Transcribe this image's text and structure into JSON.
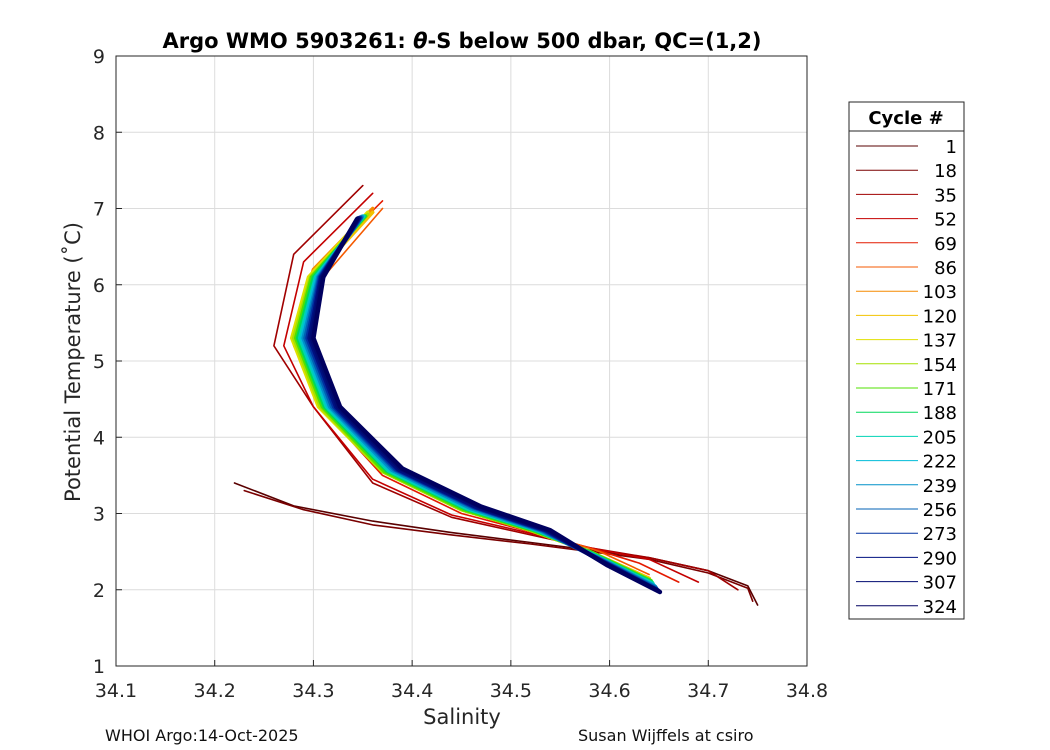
{
  "chart_data": {
    "type": "line",
    "title": "Argo WMO 5903261: θ-S below 500 dbar,  QC=(1,2)",
    "title_parts": {
      "prefix": "Argo WMO 5903261: ",
      "theta": "θ",
      "suffix": "-S below 500 dbar,  QC=(1,2)"
    },
    "xlabel": "Salinity",
    "ylabel": "Potential Temperature (˚C)",
    "xlim": [
      34.1,
      34.8
    ],
    "ylim": [
      1,
      9
    ],
    "xticks": [
      "34.1",
      "34.2",
      "34.3",
      "34.4",
      "34.5",
      "34.6",
      "34.7",
      "34.8"
    ],
    "yticks": [
      "1",
      "2",
      "3",
      "4",
      "5",
      "6",
      "7",
      "8",
      "9"
    ],
    "grid": true,
    "legend_title": "Cycle #",
    "legend_position": "right",
    "series": [
      {
        "name": "1",
        "color": "#5a0000",
        "x": [
          34.22,
          34.28,
          34.36,
          34.44,
          34.52,
          34.58,
          34.64,
          34.7,
          34.74,
          34.75
        ],
        "y": [
          3.4,
          3.1,
          2.9,
          2.75,
          2.62,
          2.52,
          2.42,
          2.25,
          2.05,
          1.8
        ]
      },
      {
        "name": "18",
        "color": "#7a0000",
        "x": [
          34.23,
          34.29,
          34.36,
          34.44,
          34.52,
          34.58,
          34.64,
          34.7,
          34.74,
          34.745
        ],
        "y": [
          3.3,
          3.05,
          2.85,
          2.72,
          2.6,
          2.5,
          2.4,
          2.22,
          2.02,
          1.85
        ]
      },
      {
        "name": "35",
        "color": "#a00000",
        "x": [
          34.35,
          34.28,
          34.26,
          34.3,
          34.36,
          34.44,
          34.52,
          34.58,
          34.64,
          34.7,
          34.73
        ],
        "y": [
          7.3,
          6.4,
          5.2,
          4.4,
          3.4,
          2.95,
          2.72,
          2.55,
          2.42,
          2.25,
          2.0
        ]
      },
      {
        "name": "52",
        "color": "#c40000",
        "x": [
          34.36,
          34.29,
          34.27,
          34.3,
          34.36,
          34.44,
          34.52,
          34.58,
          34.64,
          34.69
        ],
        "y": [
          7.2,
          6.3,
          5.2,
          4.4,
          3.45,
          2.98,
          2.74,
          2.55,
          2.4,
          2.1
        ]
      },
      {
        "name": "69",
        "color": "#e41a00",
        "x": [
          34.37,
          34.3,
          34.28,
          34.31,
          34.37,
          34.45,
          34.52,
          34.58,
          34.63,
          34.67
        ],
        "y": [
          7.1,
          6.2,
          5.2,
          4.35,
          3.5,
          3.0,
          2.76,
          2.55,
          2.35,
          2.1
        ]
      },
      {
        "name": "86",
        "color": "#f55a00",
        "x": [
          34.37,
          34.31,
          34.29,
          34.32,
          34.38,
          34.46,
          34.53,
          34.59,
          34.64
        ],
        "y": [
          7.0,
          6.1,
          5.2,
          4.3,
          3.5,
          3.02,
          2.75,
          2.5,
          2.2
        ]
      },
      {
        "name": "103",
        "color": "#f58a00",
        "x": [
          34.36,
          34.3,
          34.28,
          34.31,
          34.37,
          34.45,
          34.52,
          34.58,
          34.64
        ],
        "y": [
          7.0,
          6.2,
          5.3,
          4.4,
          3.55,
          3.05,
          2.78,
          2.5,
          2.15
        ]
      },
      {
        "name": "120",
        "color": "#f2c200",
        "x": [
          34.36,
          34.3,
          34.28,
          34.31,
          34.37,
          34.45,
          34.52,
          34.58,
          34.64
        ],
        "y": [
          6.95,
          6.1,
          5.3,
          4.4,
          3.55,
          3.05,
          2.78,
          2.5,
          2.15
        ]
      },
      {
        "name": "137",
        "color": "#e0e000",
        "x": [
          34.355,
          34.295,
          34.278,
          34.305,
          34.37,
          34.45,
          34.52,
          34.58,
          34.64
        ],
        "y": [
          6.95,
          6.1,
          5.3,
          4.4,
          3.55,
          3.05,
          2.78,
          2.5,
          2.14
        ]
      },
      {
        "name": "154",
        "color": "#a6e000",
        "x": [
          34.355,
          34.297,
          34.28,
          34.307,
          34.37,
          34.45,
          34.52,
          34.58,
          34.64
        ],
        "y": [
          6.92,
          6.1,
          5.3,
          4.4,
          3.55,
          3.05,
          2.78,
          2.5,
          2.13
        ]
      },
      {
        "name": "171",
        "color": "#50e000",
        "x": [
          34.353,
          34.298,
          34.282,
          34.309,
          34.372,
          34.452,
          34.522,
          34.58,
          34.642
        ],
        "y": [
          6.9,
          6.1,
          5.3,
          4.4,
          3.55,
          3.05,
          2.78,
          2.5,
          2.12
        ]
      },
      {
        "name": "188",
        "color": "#00d85a",
        "x": [
          34.352,
          34.3,
          34.284,
          34.311,
          34.374,
          34.454,
          34.524,
          34.582,
          34.643
        ],
        "y": [
          6.9,
          6.1,
          5.3,
          4.4,
          3.56,
          3.06,
          2.78,
          2.48,
          2.1
        ]
      },
      {
        "name": "205",
        "color": "#00d2b4",
        "x": [
          34.351,
          34.302,
          34.286,
          34.313,
          34.376,
          34.456,
          34.526,
          34.584,
          34.644
        ],
        "y": [
          6.9,
          6.1,
          5.3,
          4.4,
          3.56,
          3.06,
          2.78,
          2.46,
          2.08
        ]
      },
      {
        "name": "222",
        "color": "#00bcd8",
        "x": [
          34.35,
          34.303,
          34.288,
          34.315,
          34.378,
          34.458,
          34.528,
          34.586,
          34.645
        ],
        "y": [
          6.9,
          6.1,
          5.3,
          4.4,
          3.57,
          3.07,
          2.78,
          2.44,
          2.06
        ]
      },
      {
        "name": "239",
        "color": "#0090c8",
        "x": [
          34.349,
          34.305,
          34.29,
          34.317,
          34.38,
          34.46,
          34.53,
          34.588,
          34.646
        ],
        "y": [
          6.89,
          6.1,
          5.3,
          4.4,
          3.57,
          3.07,
          2.78,
          2.42,
          2.04
        ]
      },
      {
        "name": "256",
        "color": "#0060b4",
        "x": [
          34.348,
          34.306,
          34.292,
          34.319,
          34.382,
          34.462,
          34.532,
          34.59,
          34.647
        ],
        "y": [
          6.88,
          6.1,
          5.3,
          4.4,
          3.58,
          3.08,
          2.78,
          2.4,
          2.02
        ]
      },
      {
        "name": "273",
        "color": "#0030a0",
        "x": [
          34.347,
          34.307,
          34.294,
          34.321,
          34.384,
          34.464,
          34.534,
          34.592,
          34.648
        ],
        "y": [
          6.88,
          6.1,
          5.3,
          4.4,
          3.58,
          3.08,
          2.78,
          2.38,
          2.0
        ]
      },
      {
        "name": "290",
        "color": "#001080",
        "x": [
          34.346,
          34.308,
          34.296,
          34.323,
          34.386,
          34.466,
          34.536,
          34.594,
          34.649
        ],
        "y": [
          6.87,
          6.1,
          5.3,
          4.4,
          3.58,
          3.08,
          2.78,
          2.36,
          1.99
        ]
      },
      {
        "name": "307",
        "color": "#000a70",
        "x": [
          34.345,
          34.309,
          34.298,
          34.325,
          34.388,
          34.468,
          34.538,
          34.596,
          34.65
        ],
        "y": [
          6.87,
          6.1,
          5.3,
          4.4,
          3.59,
          3.09,
          2.78,
          2.34,
          1.98
        ]
      },
      {
        "name": "324",
        "color": "#000060",
        "x": [
          34.344,
          34.31,
          34.3,
          34.327,
          34.39,
          34.47,
          34.54,
          34.598,
          34.651
        ],
        "y": [
          6.86,
          6.1,
          5.3,
          4.4,
          3.59,
          3.09,
          2.78,
          2.32,
          1.97
        ]
      }
    ]
  },
  "footer": {
    "left": "WHOI Argo:14-Oct-2025",
    "right": "Susan Wijffels at csiro"
  }
}
